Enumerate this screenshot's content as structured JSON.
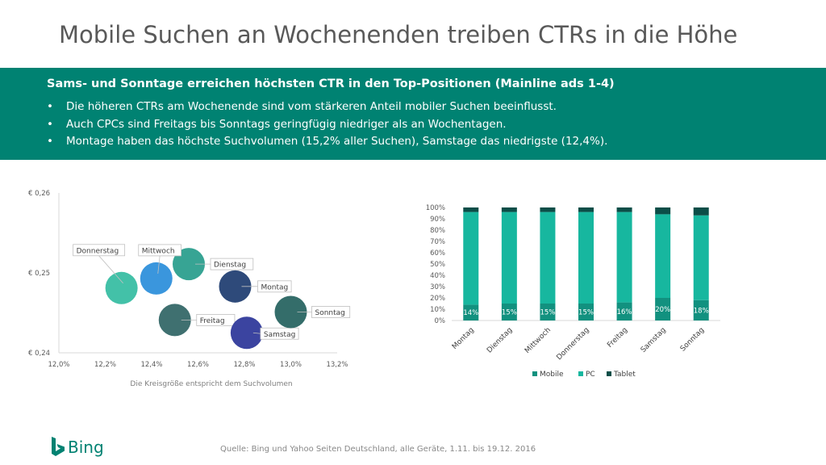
{
  "page": {
    "title": "Mobile Suchen an Wochenenden treiben CTRs in die Höhe",
    "banner_heading": "Sams- und Sonntage erreichen höchsten CTR in den Top-Positionen (Mainline ads 1-4)",
    "bullets": [
      "Die höheren CTRs am Wochenende sind vom stärkeren Anteil mobiler Suchen beeinflusst.",
      "Auch CPCs sind Freitags bis Sonntags geringfügig niedriger als an Wochentagen.",
      "Montage haben das höchste Suchvolumen (15,2% aller Suchen), Samstage das niedrigste (12,4%)."
    ],
    "source": "Quelle: Bing und Yahoo Seiten Deutschland, alle Geräte,  1.11. bis 19.12. 2016",
    "logo_text": "Bing",
    "colors": {
      "banner": "#008272",
      "title": "#595959"
    }
  },
  "chart_data": [
    {
      "type": "scatter",
      "title": "",
      "xlabel": "",
      "ylabel": "",
      "note": "Die Kreisgröße entspricht dem Suchvolumen",
      "xlim": [
        12.0,
        13.2
      ],
      "ylim": [
        0.24,
        0.26
      ],
      "xticks": [
        "12,0%",
        "12,2%",
        "12,4%",
        "12,6%",
        "12,8%",
        "13,0%",
        "13,2%"
      ],
      "yticks": [
        "€ 0,24",
        "€ 0,25",
        "€ 0,26"
      ],
      "points": [
        {
          "name": "Montag",
          "x": 12.76,
          "y": 0.2483,
          "color": "#2e4a7a"
        },
        {
          "name": "Dienstag",
          "x": 12.56,
          "y": 0.2511,
          "color": "#37a494"
        },
        {
          "name": "Mittwoch",
          "x": 12.42,
          "y": 0.2493,
          "color": "#3a96dd"
        },
        {
          "name": "Donnerstag",
          "x": 12.27,
          "y": 0.2481,
          "color": "#43c1a8"
        },
        {
          "name": "Freitag",
          "x": 12.5,
          "y": 0.2441,
          "color": "#3f7070"
        },
        {
          "name": "Samstag",
          "x": 12.81,
          "y": 0.2425,
          "color": "#3b44a0"
        },
        {
          "name": "Sonntag",
          "x": 13.0,
          "y": 0.2451,
          "color": "#346d6a"
        }
      ]
    },
    {
      "type": "bar",
      "stacked": true,
      "categories": [
        "Montag",
        "Dienstag",
        "Mittwoch",
        "Donnerstag",
        "Freitag",
        "Samstag",
        "Sonntag"
      ],
      "ylim": [
        0,
        100
      ],
      "yticks": [
        "0%",
        "10%",
        "20%",
        "30%",
        "40%",
        "50%",
        "60%",
        "70%",
        "80%",
        "90%",
        "100%"
      ],
      "legend": "bottom",
      "series": [
        {
          "name": "Mobile",
          "color": "#12917f",
          "values": [
            14,
            15,
            15,
            15,
            16,
            20,
            18
          ],
          "labels": [
            "14%",
            "15%",
            "15%",
            "15%",
            "16%",
            "20%",
            "18%"
          ]
        },
        {
          "name": "PC",
          "color": "#17b79f",
          "values": [
            82,
            81,
            81,
            81,
            80,
            74,
            75
          ]
        },
        {
          "name": "Tablet",
          "color": "#0b4e48",
          "values": [
            4,
            4,
            4,
            4,
            4,
            6,
            7
          ]
        }
      ]
    }
  ]
}
